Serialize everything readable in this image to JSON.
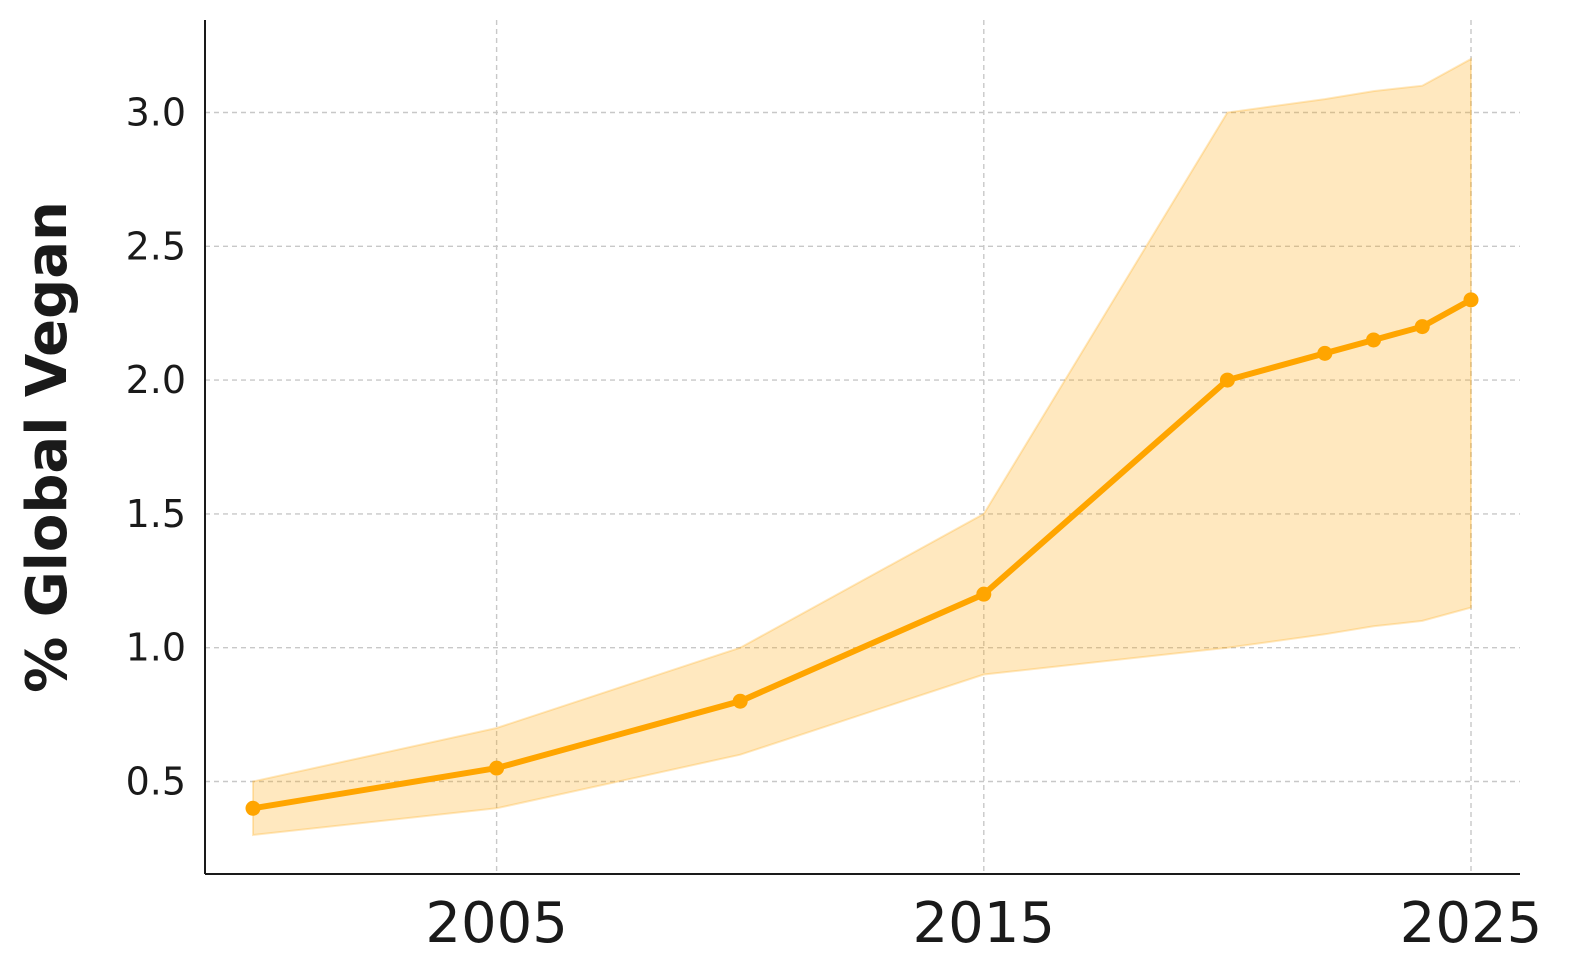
{
  "chart_data": {
    "type": "line",
    "title": "",
    "xlabel": "",
    "ylabel": "% Global Vegan",
    "xlim": [
      2000,
      2025
    ],
    "ylim": [
      0.15,
      3.35
    ],
    "grid": true,
    "x_ticks": [
      2005,
      2015,
      2025
    ],
    "y_ticks": [
      0.5,
      1.0,
      1.5,
      2.0,
      2.5,
      3.0
    ],
    "y_tick_labels": [
      "0.5",
      "1.0",
      "1.5",
      "2.0",
      "2.5",
      "3.0"
    ],
    "series": [
      {
        "x": [
          2000,
          2005,
          2010,
          2015,
          2020,
          2022,
          2023,
          2024,
          2025
        ],
        "y": [
          0.4,
          0.55,
          0.8,
          1.2,
          2.0,
          2.1,
          2.15,
          2.2,
          2.3
        ],
        "lower": [
          0.3,
          0.4,
          0.6,
          0.9,
          1.0,
          1.05,
          1.08,
          1.1,
          1.15
        ],
        "upper": [
          0.5,
          0.7,
          1.0,
          1.5,
          3.0,
          3.05,
          3.08,
          3.1,
          3.2
        ]
      }
    ],
    "colors": {
      "line": "#FFA500",
      "band": "#FFA500",
      "grid": "#c8c8c8",
      "axis": "#1a1a1a"
    }
  }
}
